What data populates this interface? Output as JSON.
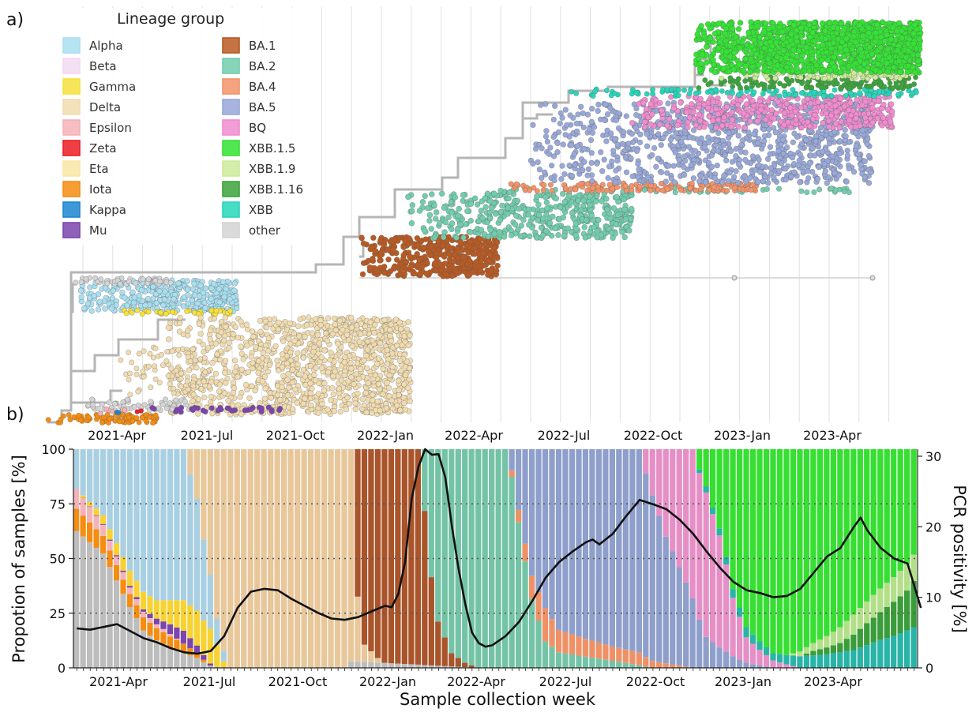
{
  "panel_a": {
    "label": "a)",
    "legend_title": "Lineage group",
    "legend": [
      {
        "name": "Alpha",
        "color": "#a9dff0"
      },
      {
        "name": "Beta",
        "color": "#f3d9f1"
      },
      {
        "name": "Gamma",
        "color": "#f6e13c"
      },
      {
        "name": "Delta",
        "color": "#f1dcb0"
      },
      {
        "name": "Epsilon",
        "color": "#f4b3b8"
      },
      {
        "name": "Zeta",
        "color": "#ec1d25"
      },
      {
        "name": "Eta",
        "color": "#f8e6a5"
      },
      {
        "name": "Iota",
        "color": "#f58d12"
      },
      {
        "name": "Kappa",
        "color": "#1c86d1"
      },
      {
        "name": "Mu",
        "color": "#7b45ad"
      },
      {
        "name": "BA.1",
        "color": "#b85a23"
      },
      {
        "name": "BA.2",
        "color": "#72ccad"
      },
      {
        "name": "BA.4",
        "color": "#f2936a"
      },
      {
        "name": "BA.5",
        "color": "#98a8d8"
      },
      {
        "name": "BQ",
        "color": "#f08ccf"
      },
      {
        "name": "XBB.1.5",
        "color": "#35e235"
      },
      {
        "name": "XBB.1.9",
        "color": "#cdea9a"
      },
      {
        "name": "XBB.1.16",
        "color": "#3ca43c"
      },
      {
        "name": "XBB",
        "color": "#28d6bb"
      },
      {
        "name": "other",
        "color": "#d4d4d4"
      }
    ],
    "x_ticks": [
      "2021-Apr",
      "2021-Jul",
      "2021-Oct",
      "2022-Jan",
      "2022-Apr",
      "2022-Jul",
      "2022-Oct",
      "2023-Jan",
      "2023-Apr"
    ]
  },
  "chart_data": {
    "type": "area",
    "label": "b)",
    "xlabel": "Sample collection week",
    "ylabel": "Propotion of samples [%]",
    "y2label": "PCR positivity [%]",
    "x_ticks": [
      "2021-Apr",
      "2021-Jul",
      "2021-Oct",
      "2022-Jan",
      "2022-Apr",
      "2022-Jul",
      "2022-Oct",
      "2023-Jan",
      "2023-Apr"
    ],
    "ylim": [
      0,
      100
    ],
    "yticks": [
      0,
      25,
      50,
      75,
      100
    ],
    "y2lim": [
      0,
      31
    ],
    "y2ticks": [
      0,
      10,
      20,
      30
    ],
    "grid": "horizontal dotted at 25, 50, 75",
    "weeks": 126,
    "stack_order": [
      "other",
      "Iota",
      "Epsilon",
      "Mu",
      "Gamma",
      "Alpha",
      "Delta",
      "BA.1",
      "BA.2",
      "BA.4",
      "BA.5",
      "BQ",
      "XBB",
      "XBB.1.16",
      "XBB.1.9",
      "XBB.1.5"
    ],
    "colors": {
      "other": "#bdbdbd",
      "Iota": "#f58d12",
      "Epsilon": "#f4b3b8",
      "Mu": "#7b45ad",
      "Gamma": "#f7d232",
      "Alpha": "#a9cfe2",
      "Delta": "#e8c79b",
      "BA.1": "#a9542a",
      "BA.2": "#74c3a7",
      "BA.4": "#ef9167",
      "BA.5": "#8e9fcb",
      "BQ": "#e68fc6",
      "XBB": "#29b4a8",
      "XBB.1.16": "#3a9c3a",
      "XBB.1.9": "#b4df89",
      "XBB.1.5": "#36df32"
    },
    "series_keyframes": {
      "other": [
        [
          0,
          62
        ],
        [
          4,
          52
        ],
        [
          8,
          28
        ],
        [
          10,
          16
        ],
        [
          14,
          8
        ],
        [
          18,
          4
        ],
        [
          20,
          1
        ],
        [
          22,
          0
        ],
        [
          40,
          0
        ],
        [
          41,
          3
        ],
        [
          60,
          0
        ],
        [
          126,
          0
        ]
      ],
      "Iota": [
        [
          0,
          10
        ],
        [
          4,
          8
        ],
        [
          8,
          6
        ],
        [
          14,
          5
        ],
        [
          18,
          2
        ],
        [
          20,
          0
        ],
        [
          126,
          0
        ]
      ],
      "Epsilon": [
        [
          0,
          9
        ],
        [
          4,
          5
        ],
        [
          8,
          3
        ],
        [
          14,
          1
        ],
        [
          16,
          0
        ],
        [
          126,
          0
        ]
      ],
      "Mu": [
        [
          0,
          0
        ],
        [
          10,
          1
        ],
        [
          14,
          4
        ],
        [
          16,
          5
        ],
        [
          18,
          3
        ],
        [
          20,
          1
        ],
        [
          21,
          0
        ],
        [
          126,
          0
        ]
      ],
      "Gamma": [
        [
          0,
          0
        ],
        [
          4,
          4
        ],
        [
          8,
          7
        ],
        [
          12,
          8
        ],
        [
          16,
          12
        ],
        [
          18,
          14
        ],
        [
          20,
          16
        ],
        [
          21,
          10
        ],
        [
          22,
          3
        ],
        [
          23,
          0
        ],
        [
          126,
          0
        ]
      ],
      "Alpha": [
        [
          0,
          18
        ],
        [
          4,
          30
        ],
        [
          8,
          56
        ],
        [
          12,
          66
        ],
        [
          16,
          59
        ],
        [
          18,
          45
        ],
        [
          20,
          25
        ],
        [
          21,
          12
        ],
        [
          22,
          5
        ],
        [
          23,
          0
        ],
        [
          126,
          0
        ]
      ],
      "Delta": [
        [
          0,
          0
        ],
        [
          16,
          0
        ],
        [
          18,
          20
        ],
        [
          20,
          58
        ],
        [
          21,
          78
        ],
        [
          22,
          94
        ],
        [
          23,
          98
        ],
        [
          24,
          100
        ],
        [
          40,
          100
        ],
        [
          41,
          97
        ],
        [
          42,
          30
        ],
        [
          43,
          8
        ],
        [
          45,
          2
        ],
        [
          46,
          0
        ],
        [
          126,
          0
        ]
      ],
      "BA.1": [
        [
          0,
          0
        ],
        [
          41,
          0
        ],
        [
          42,
          68
        ],
        [
          43,
          90
        ],
        [
          47,
          96
        ],
        [
          51,
          94
        ],
        [
          52,
          70
        ],
        [
          53,
          40
        ],
        [
          54,
          20
        ],
        [
          56,
          6
        ],
        [
          58,
          2
        ],
        [
          60,
          0
        ],
        [
          126,
          0
        ]
      ],
      "BA.2": [
        [
          0,
          0
        ],
        [
          51,
          0
        ],
        [
          52,
          28
        ],
        [
          53,
          58
        ],
        [
          54,
          78
        ],
        [
          56,
          92
        ],
        [
          58,
          98
        ],
        [
          62,
          95
        ],
        [
          64,
          85
        ],
        [
          66,
          60
        ],
        [
          68,
          30
        ],
        [
          70,
          12
        ],
        [
          72,
          7
        ],
        [
          76,
          5
        ],
        [
          80,
          3
        ],
        [
          84,
          1
        ],
        [
          86,
          0
        ],
        [
          126,
          0
        ]
      ],
      "BA.4": [
        [
          0,
          0
        ],
        [
          64,
          0
        ],
        [
          66,
          5
        ],
        [
          68,
          10
        ],
        [
          70,
          15
        ],
        [
          72,
          10
        ],
        [
          76,
          8
        ],
        [
          80,
          6
        ],
        [
          84,
          5
        ],
        [
          86,
          3
        ],
        [
          90,
          1
        ],
        [
          92,
          0
        ],
        [
          126,
          0
        ]
      ],
      "BA.5": [
        [
          0,
          0
        ],
        [
          64,
          0
        ],
        [
          65,
          8
        ],
        [
          66,
          25
        ],
        [
          68,
          55
        ],
        [
          70,
          72
        ],
        [
          72,
          81
        ],
        [
          76,
          85
        ],
        [
          80,
          83
        ],
        [
          84,
          80
        ],
        [
          86,
          72
        ],
        [
          88,
          55
        ],
        [
          90,
          40
        ],
        [
          94,
          15
        ],
        [
          98,
          5
        ],
        [
          100,
          2
        ],
        [
          104,
          0
        ],
        [
          126,
          0
        ]
      ],
      "BQ": [
        [
          0,
          0
        ],
        [
          84,
          0
        ],
        [
          86,
          20
        ],
        [
          88,
          38
        ],
        [
          90,
          48
        ],
        [
          94,
          70
        ],
        [
          96,
          55
        ],
        [
          98,
          25
        ],
        [
          100,
          10
        ],
        [
          104,
          3
        ],
        [
          108,
          0
        ],
        [
          126,
          0
        ]
      ],
      "XBB": [
        [
          0,
          0
        ],
        [
          92,
          0
        ],
        [
          94,
          3
        ],
        [
          100,
          4
        ],
        [
          104,
          3
        ],
        [
          108,
          5
        ],
        [
          112,
          6
        ],
        [
          116,
          8
        ],
        [
          120,
          13
        ],
        [
          124,
          17
        ],
        [
          126,
          20
        ]
      ],
      "XBB.1.16": [
        [
          0,
          0
        ],
        [
          108,
          0
        ],
        [
          110,
          2
        ],
        [
          114,
          4
        ],
        [
          118,
          10
        ],
        [
          122,
          16
        ],
        [
          124,
          18
        ],
        [
          126,
          24
        ]
      ],
      "XBB.1.9": [
        [
          0,
          0
        ],
        [
          106,
          0
        ],
        [
          108,
          2
        ],
        [
          112,
          5
        ],
        [
          116,
          9
        ],
        [
          120,
          11
        ],
        [
          124,
          12
        ],
        [
          126,
          12
        ]
      ],
      "XBB.1.5": [
        [
          0,
          0
        ],
        [
          92,
          0
        ],
        [
          94,
          18
        ],
        [
          98,
          60
        ],
        [
          102,
          80
        ],
        [
          106,
          88
        ],
        [
          110,
          86
        ],
        [
          114,
          79
        ],
        [
          118,
          70
        ],
        [
          122,
          60
        ],
        [
          126,
          44
        ]
      ]
    },
    "pcr_positivity": [
      [
        0,
        5.6
      ],
      [
        2,
        5.4
      ],
      [
        4,
        5.8
      ],
      [
        6,
        6.2
      ],
      [
        8,
        5.2
      ],
      [
        10,
        4.2
      ],
      [
        12,
        3.6
      ],
      [
        14,
        2.8
      ],
      [
        16,
        2.2
      ],
      [
        18,
        2.0
      ],
      [
        20,
        2.4
      ],
      [
        22,
        4.5
      ],
      [
        24,
        8.5
      ],
      [
        26,
        10.8
      ],
      [
        28,
        11.2
      ],
      [
        30,
        11.0
      ],
      [
        32,
        9.8
      ],
      [
        34,
        8.8
      ],
      [
        36,
        7.8
      ],
      [
        38,
        7.0
      ],
      [
        40,
        6.8
      ],
      [
        42,
        7.2
      ],
      [
        44,
        8.0
      ],
      [
        46,
        8.8
      ],
      [
        47,
        8.6
      ],
      [
        48,
        10.5
      ],
      [
        49,
        15.0
      ],
      [
        50,
        24.0
      ],
      [
        51,
        28.5
      ],
      [
        52,
        31.0
      ],
      [
        53,
        30.2
      ],
      [
        54,
        30.3
      ],
      [
        55,
        27.0
      ],
      [
        56,
        20.0
      ],
      [
        57,
        14.0
      ],
      [
        58,
        9.0
      ],
      [
        59,
        5.0
      ],
      [
        60,
        3.5
      ],
      [
        61,
        3.0
      ],
      [
        62,
        3.2
      ],
      [
        64,
        4.5
      ],
      [
        66,
        6.5
      ],
      [
        68,
        9.5
      ],
      [
        70,
        12.8
      ],
      [
        72,
        15.0
      ],
      [
        74,
        16.5
      ],
      [
        76,
        17.8
      ],
      [
        77,
        18.2
      ],
      [
        78,
        17.5
      ],
      [
        80,
        19.0
      ],
      [
        82,
        21.5
      ],
      [
        84,
        23.8
      ],
      [
        86,
        23.2
      ],
      [
        88,
        22.5
      ],
      [
        90,
        21.0
      ],
      [
        92,
        19.0
      ],
      [
        94,
        16.5
      ],
      [
        96,
        14.2
      ],
      [
        98,
        12.2
      ],
      [
        100,
        11.0
      ],
      [
        102,
        10.6
      ],
      [
        104,
        10.0
      ],
      [
        106,
        10.2
      ],
      [
        108,
        11.2
      ],
      [
        110,
        13.5
      ],
      [
        112,
        15.8
      ],
      [
        114,
        17.0
      ],
      [
        116,
        20.0
      ],
      [
        117,
        21.3
      ],
      [
        118,
        19.5
      ],
      [
        120,
        17.0
      ],
      [
        122,
        15.5
      ],
      [
        124,
        14.8
      ],
      [
        126,
        8.5
      ]
    ]
  }
}
